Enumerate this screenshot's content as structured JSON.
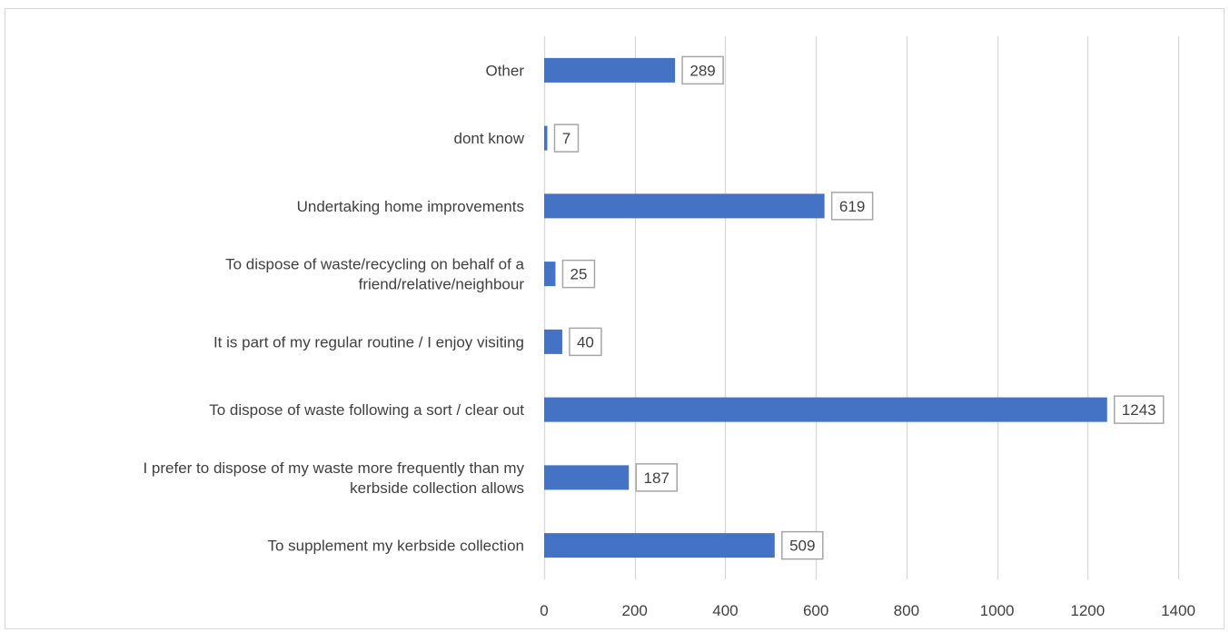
{
  "chart_data": {
    "type": "bar",
    "orientation": "horizontal",
    "categories": [
      "Other",
      "dont know",
      "Undertaking home improvements",
      "To dispose of waste/recycling on behalf of a friend/relative/neighbour",
      "It is part of my regular routine / I enjoy visiting",
      "To dispose of waste following a sort / clear out",
      "I prefer to dispose of my waste more frequently than my kerbside collection allows",
      "To supplement my kerbside collection"
    ],
    "category_lines": [
      [
        "Other"
      ],
      [
        "dont know"
      ],
      [
        "Undertaking home improvements"
      ],
      [
        "To dispose of waste/recycling on behalf of a",
        "friend/relative/neighbour"
      ],
      [
        "It is part of my regular routine / I enjoy visiting"
      ],
      [
        "To dispose of waste following a sort / clear out"
      ],
      [
        "I prefer to dispose of my waste more frequently than my",
        "kerbside collection allows"
      ],
      [
        "To supplement my kerbside collection"
      ]
    ],
    "values": [
      289,
      7,
      619,
      25,
      40,
      1243,
      187,
      509
    ],
    "xlim": [
      0,
      1400
    ],
    "x_ticks": [
      0,
      200,
      400,
      600,
      800,
      1000,
      1200,
      1400
    ],
    "title": "",
    "xlabel": "",
    "ylabel": "",
    "grid": "vertical",
    "legend": "none",
    "data_labels": true,
    "colors": {
      "bar": "#4472c4",
      "grid": "#d9d9d9",
      "text": "#404040",
      "label_border": "#a6a6a6"
    }
  }
}
